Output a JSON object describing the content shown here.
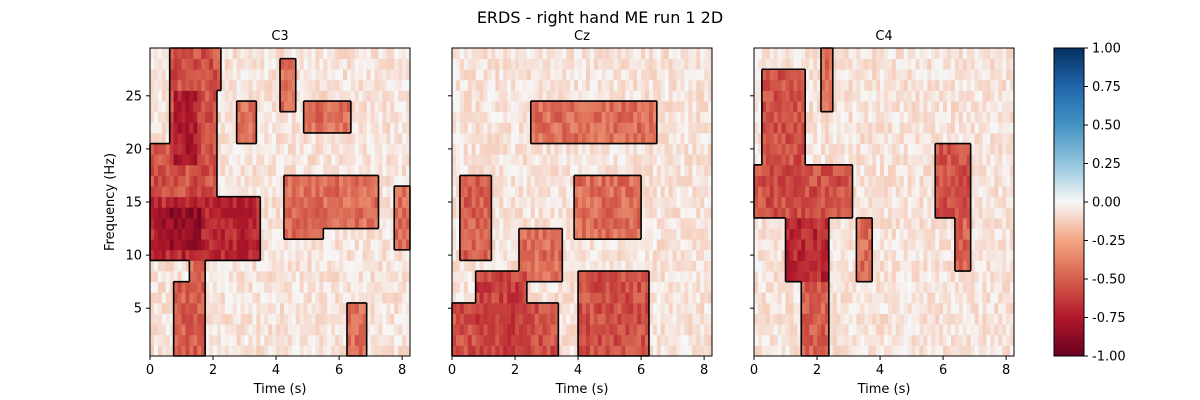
{
  "title": "ERDS - right hand ME run 1 2D",
  "chart_data": {
    "type": "heatmap",
    "xlabel": "Time (s)",
    "ylabel": "Frequency (Hz)",
    "xlim": [
      0,
      8.25
    ],
    "ylim": [
      0.5,
      29.5
    ],
    "x_ticks": [
      0,
      2,
      4,
      6,
      8
    ],
    "y_ticks": [
      5,
      10,
      15,
      20,
      25
    ],
    "colorbar": {
      "colormap": "RdBu",
      "range": [
        -1.0,
        1.0
      ],
      "ticks": [
        "1.00",
        "0.75",
        "0.50",
        "0.25",
        "0.00",
        "-0.25",
        "-0.50",
        "-0.75",
        "-1.00"
      ]
    },
    "panels": [
      {
        "title": "C3",
        "regions": [
          {
            "t": [
              0.6,
              2.1
            ],
            "f": [
              15,
              29
            ],
            "value": -0.55
          },
          {
            "t": [
              0.7,
              1.5
            ],
            "f": [
              19,
              25
            ],
            "value": -0.75
          },
          {
            "t": [
              0.0,
              3.5
            ],
            "f": [
              10,
              15
            ],
            "value": -0.7
          },
          {
            "t": [
              0.2,
              1.6
            ],
            "f": [
              11,
              14
            ],
            "value": -0.85
          },
          {
            "t": [
              0.0,
              0.7
            ],
            "f": [
              15,
              20
            ],
            "value": -0.55
          },
          {
            "t": [
              0.7,
              1.8
            ],
            "f": [
              1,
              7
            ],
            "value": -0.5
          },
          {
            "t": [
              1.2,
              1.8
            ],
            "f": [
              6,
              10
            ],
            "value": -0.45
          },
          {
            "t": [
              1.8,
              2.3
            ],
            "f": [
              26,
              29
            ],
            "value": -0.45
          },
          {
            "t": [
              2.7,
              3.4
            ],
            "f": [
              21,
              24
            ],
            "value": -0.45
          },
          {
            "t": [
              4.1,
              4.6
            ],
            "f": [
              24,
              28
            ],
            "value": -0.45
          },
          {
            "t": [
              4.9,
              6.4
            ],
            "f": [
              22,
              24
            ],
            "value": -0.45
          },
          {
            "t": [
              4.2,
              5.5
            ],
            "f": [
              12,
              17
            ],
            "value": -0.45
          },
          {
            "t": [
              5.3,
              7.2
            ],
            "f": [
              13,
              17
            ],
            "value": -0.45
          },
          {
            "t": [
              6.2,
              6.9
            ],
            "f": [
              1,
              5
            ],
            "value": -0.45
          },
          {
            "t": [
              7.8,
              8.25
            ],
            "f": [
              11,
              16
            ],
            "value": -0.45
          }
        ]
      },
      {
        "title": "Cz",
        "regions": [
          {
            "t": [
              2.5,
              6.5
            ],
            "f": [
              21,
              24
            ],
            "value": -0.45
          },
          {
            "t": [
              3.9,
              6.0
            ],
            "f": [
              12,
              17
            ],
            "value": -0.45
          },
          {
            "t": [
              0.3,
              1.3
            ],
            "f": [
              10,
              17
            ],
            "value": -0.5
          },
          {
            "t": [
              2.1,
              3.5
            ],
            "f": [
              8,
              12
            ],
            "value": -0.45
          },
          {
            "t": [
              0.0,
              3.4
            ],
            "f": [
              1,
              5
            ],
            "value": -0.55
          },
          {
            "t": [
              0.8,
              2.4
            ],
            "f": [
              0.5,
              8
            ],
            "value": -0.6
          },
          {
            "t": [
              4.0,
              6.3
            ],
            "f": [
              0.5,
              8
            ],
            "value": -0.55
          }
        ]
      },
      {
        "title": "C4",
        "regions": [
          {
            "t": [
              0.3,
              1.6
            ],
            "f": [
              17,
              27
            ],
            "value": -0.55
          },
          {
            "t": [
              0.0,
              3.1
            ],
            "f": [
              14,
              18
            ],
            "value": -0.55
          },
          {
            "t": [
              1.0,
              2.4
            ],
            "f": [
              8,
              13
            ],
            "value": -0.7
          },
          {
            "t": [
              1.5,
              2.4
            ],
            "f": [
              0.5,
              8
            ],
            "value": -0.5
          },
          {
            "t": [
              2.1,
              2.5
            ],
            "f": [
              24,
              29
            ],
            "value": -0.45
          },
          {
            "t": [
              3.3,
              3.8
            ],
            "f": [
              8,
              13
            ],
            "value": -0.45
          },
          {
            "t": [
              5.8,
              6.9
            ],
            "f": [
              14,
              20
            ],
            "value": -0.55
          },
          {
            "t": [
              6.4,
              6.9
            ],
            "f": [
              9,
              13
            ],
            "value": -0.5
          }
        ]
      }
    ]
  }
}
